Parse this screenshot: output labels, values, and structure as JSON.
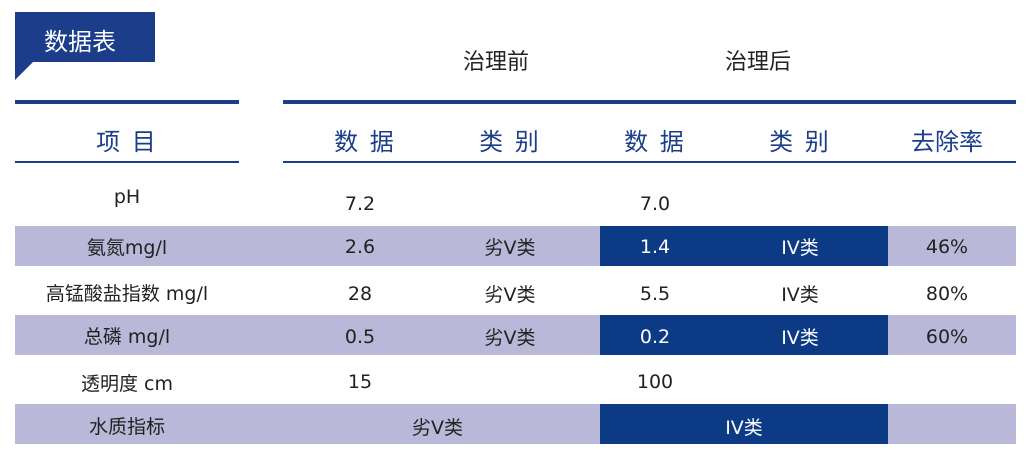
{
  "section_tag": "数据表",
  "groups": {
    "before": "治理前",
    "after": "治理后"
  },
  "headers": {
    "item": "项 目",
    "before_data": "数 据",
    "before_class": "类 别",
    "after_data": "数 据",
    "after_class": "类 别",
    "removal": "去除率"
  },
  "rows": [
    {
      "item": "pH",
      "before_data": "7.2",
      "before_class": "",
      "after_data": "7.0",
      "after_class": "",
      "removal": ""
    },
    {
      "item": "氨氮mg/l",
      "before_data": "2.6",
      "before_class": "劣V类",
      "after_data": "1.4",
      "after_class": "IV类",
      "removal": "46%"
    },
    {
      "item": "高锰酸盐指数 mg/l",
      "before_data": "28",
      "before_class": "劣V类",
      "after_data": "5.5",
      "after_class": "IV类",
      "removal": "80%"
    },
    {
      "item": "总磷 mg/l",
      "before_data": "0.5",
      "before_class": "劣V类",
      "after_data": "0.2",
      "after_class": "IV类",
      "removal": "60%"
    },
    {
      "item": "透明度 cm",
      "before_data": "15",
      "before_class": "",
      "after_data": "100",
      "after_class": "",
      "removal": ""
    }
  ],
  "summary": {
    "item": "水质指标",
    "before": "劣V类",
    "after": "IV类"
  },
  "colors": {
    "accent": "#1b3d8a",
    "band": "#b9b8d8",
    "highlight": "#0d3a85"
  }
}
